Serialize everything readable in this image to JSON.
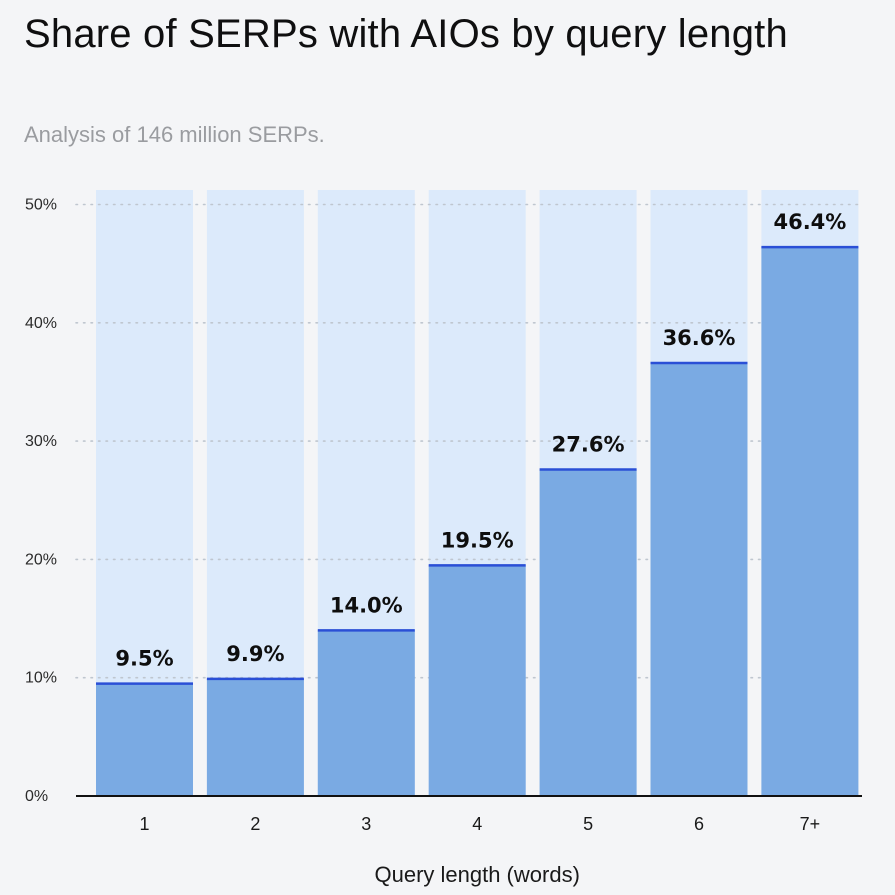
{
  "header": {
    "title": "Share of SERPs with AIOs by query length",
    "subtitle": "Analysis of 146 million SERPs."
  },
  "colors": {
    "background": "#F4F5F7",
    "bar_track": "#DCEAFB",
    "bar_fill": "#7AAAE3",
    "bar_top_line": "#2A4FD6",
    "grid": "#BFC6CF",
    "axis": "#111111"
  },
  "chart_data": {
    "type": "bar",
    "title": "Share of SERPs with AIOs by query length",
    "subtitle": "Analysis of 146 million SERPs.",
    "xlabel": "Query length (words)",
    "ylabel": "",
    "categories": [
      "1",
      "2",
      "3",
      "4",
      "5",
      "6",
      "7+"
    ],
    "values": [
      9.5,
      9.9,
      14.0,
      19.5,
      27.6,
      36.6,
      46.4
    ],
    "value_labels": [
      "9.5%",
      "9.9%",
      "14.0%",
      "19.5%",
      "27.6%",
      "36.6%",
      "46.4%"
    ],
    "ylim": [
      0,
      50
    ],
    "yticks": [
      0,
      10,
      20,
      30,
      40,
      50
    ],
    "ytick_labels": [
      "0%",
      "10%",
      "20%",
      "30%",
      "40%",
      "50%"
    ],
    "grid": true,
    "grid_style": "dotted",
    "legend": "none"
  }
}
